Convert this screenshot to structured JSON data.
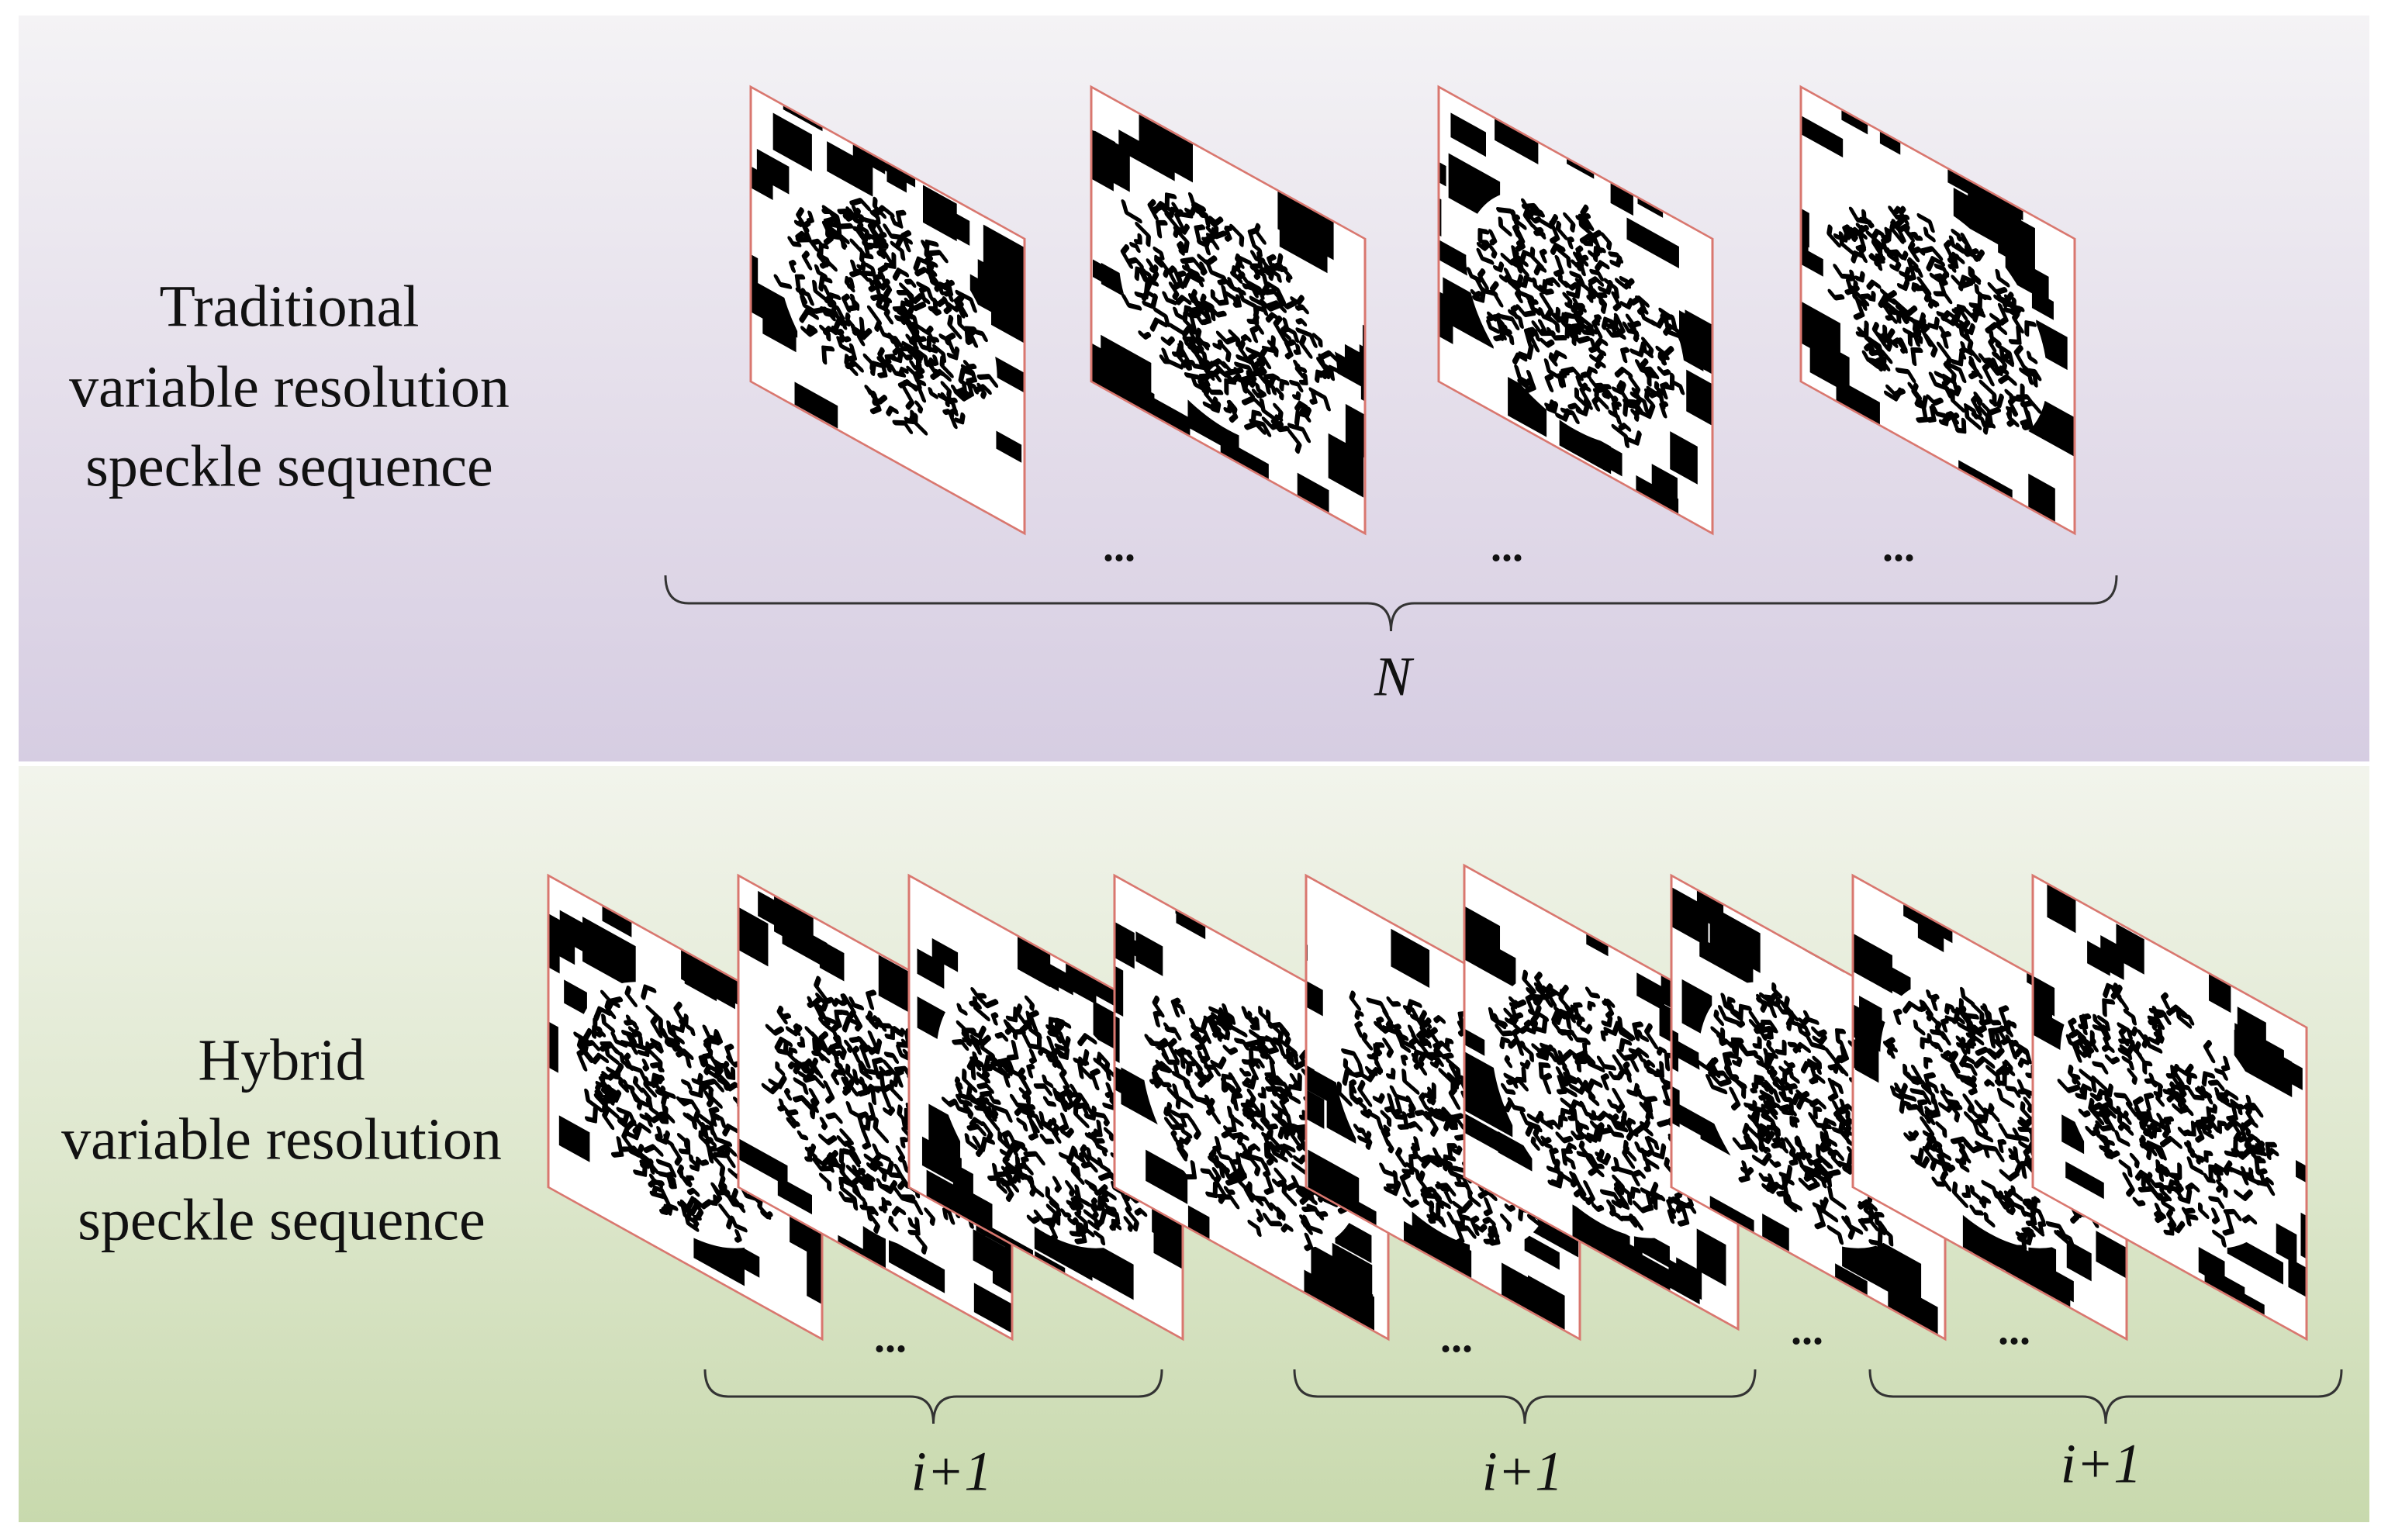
{
  "top_panel": {
    "label": [
      "Traditional",
      "variable resolution",
      "speckle sequence"
    ],
    "ellipses": [
      "...",
      "...",
      "..."
    ],
    "brace_label": "N"
  },
  "bottom_panel": {
    "label": [
      "Hybrid",
      "variable resolution",
      "speckle sequence"
    ],
    "ellipses": [
      "...",
      "...",
      "...",
      "..."
    ],
    "brace_labels": [
      "i+1",
      "i+1",
      "i+1"
    ]
  }
}
